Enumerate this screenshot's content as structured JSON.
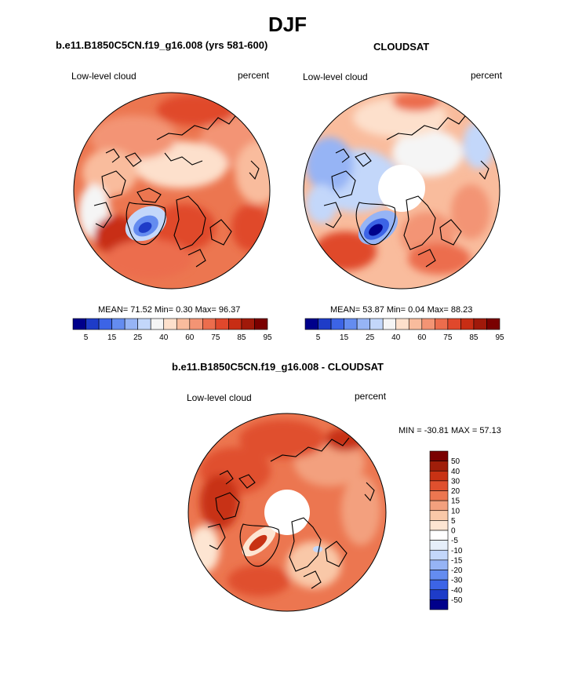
{
  "title": "DJF",
  "colors": {
    "bins": [
      "#00008b",
      "#1e3cc8",
      "#3c64e6",
      "#648cf0",
      "#96b4f5",
      "#c3d7fa",
      "#f5f5f5",
      "#fde0cc",
      "#f9bc9d",
      "#f39474",
      "#ec6d4d",
      "#e0482c",
      "#c82d14",
      "#a0190a",
      "#7a0000"
    ],
    "diff_bins": [
      "#00008b",
      "#1e3cc8",
      "#3c64e6",
      "#648cf0",
      "#96b4f5",
      "#c3d7fa",
      "#e6effa",
      "#ffffff",
      "#fde5d2",
      "#f9c8a8",
      "#f3a07e",
      "#ec7650",
      "#e0502e",
      "#c83214",
      "#a01e0a",
      "#7a0000"
    ]
  },
  "panels": [
    {
      "title": "b.e11.B1850C5CN.f19_g16.008 (yrs 581-600)",
      "field_label": "Low-level cloud",
      "units": "percent",
      "stats": {
        "mean_label": "MEAN=",
        "mean": "71.52",
        "min_label": "Min=",
        "min": "0.30",
        "max_label": "Max=",
        "max": "96.37"
      },
      "colorbar_ticks": [
        "5",
        "15",
        "25",
        "40",
        "60",
        "75",
        "85",
        "95"
      ]
    },
    {
      "title": "CLOUDSAT",
      "field_label": "Low-level cloud",
      "units": "percent",
      "stats": {
        "mean_label": "MEAN=",
        "mean": "53.87",
        "min_label": "Min=",
        "min": "0.04",
        "max_label": "Max=",
        "max": "88.23"
      },
      "colorbar_ticks": [
        "5",
        "15",
        "25",
        "40",
        "60",
        "75",
        "85",
        "95"
      ]
    },
    {
      "title": "b.e11.B1850C5CN.f19_g16.008 - CLOUDSAT",
      "field_label": "Low-level cloud",
      "units": "percent",
      "stats_text": "MIN = -30.81 MAX =  57.13",
      "colorbar_ticks": [
        "50",
        "40",
        "30",
        "20",
        "15",
        "10",
        "5",
        "0",
        "-5",
        "-10",
        "-15",
        "-20",
        "-30",
        "-40",
        "-50"
      ]
    }
  ],
  "chart_data": [
    {
      "type": "heatmap",
      "projection": "north polar stereographic",
      "title": "b.e11.B1850C5CN.f19_g16.008 (yrs 581-600)",
      "field": "Low-level cloud",
      "units": "percent",
      "mean": 71.52,
      "min": 0.3,
      "max": 96.37,
      "contour_levels": [
        5,
        10,
        15,
        20,
        25,
        30,
        40,
        50,
        60,
        65,
        70,
        75,
        80,
        85,
        90,
        95
      ]
    },
    {
      "type": "heatmap",
      "projection": "north polar stereographic",
      "title": "CLOUDSAT",
      "field": "Low-level cloud",
      "units": "percent",
      "mean": 53.87,
      "min": 0.04,
      "max": 88.23,
      "contour_levels": [
        5,
        10,
        15,
        20,
        25,
        30,
        40,
        50,
        60,
        65,
        70,
        75,
        80,
        85,
        90,
        95
      ]
    },
    {
      "type": "heatmap",
      "projection": "north polar stereographic",
      "title": "b.e11.B1850C5CN.f19_g16.008 - CLOUDSAT",
      "field": "Low-level cloud",
      "units": "percent",
      "min": -30.81,
      "max": 57.13,
      "contour_levels": [
        -50,
        -40,
        -30,
        -20,
        -15,
        -10,
        -5,
        0,
        5,
        10,
        15,
        20,
        30,
        40,
        50
      ]
    }
  ]
}
